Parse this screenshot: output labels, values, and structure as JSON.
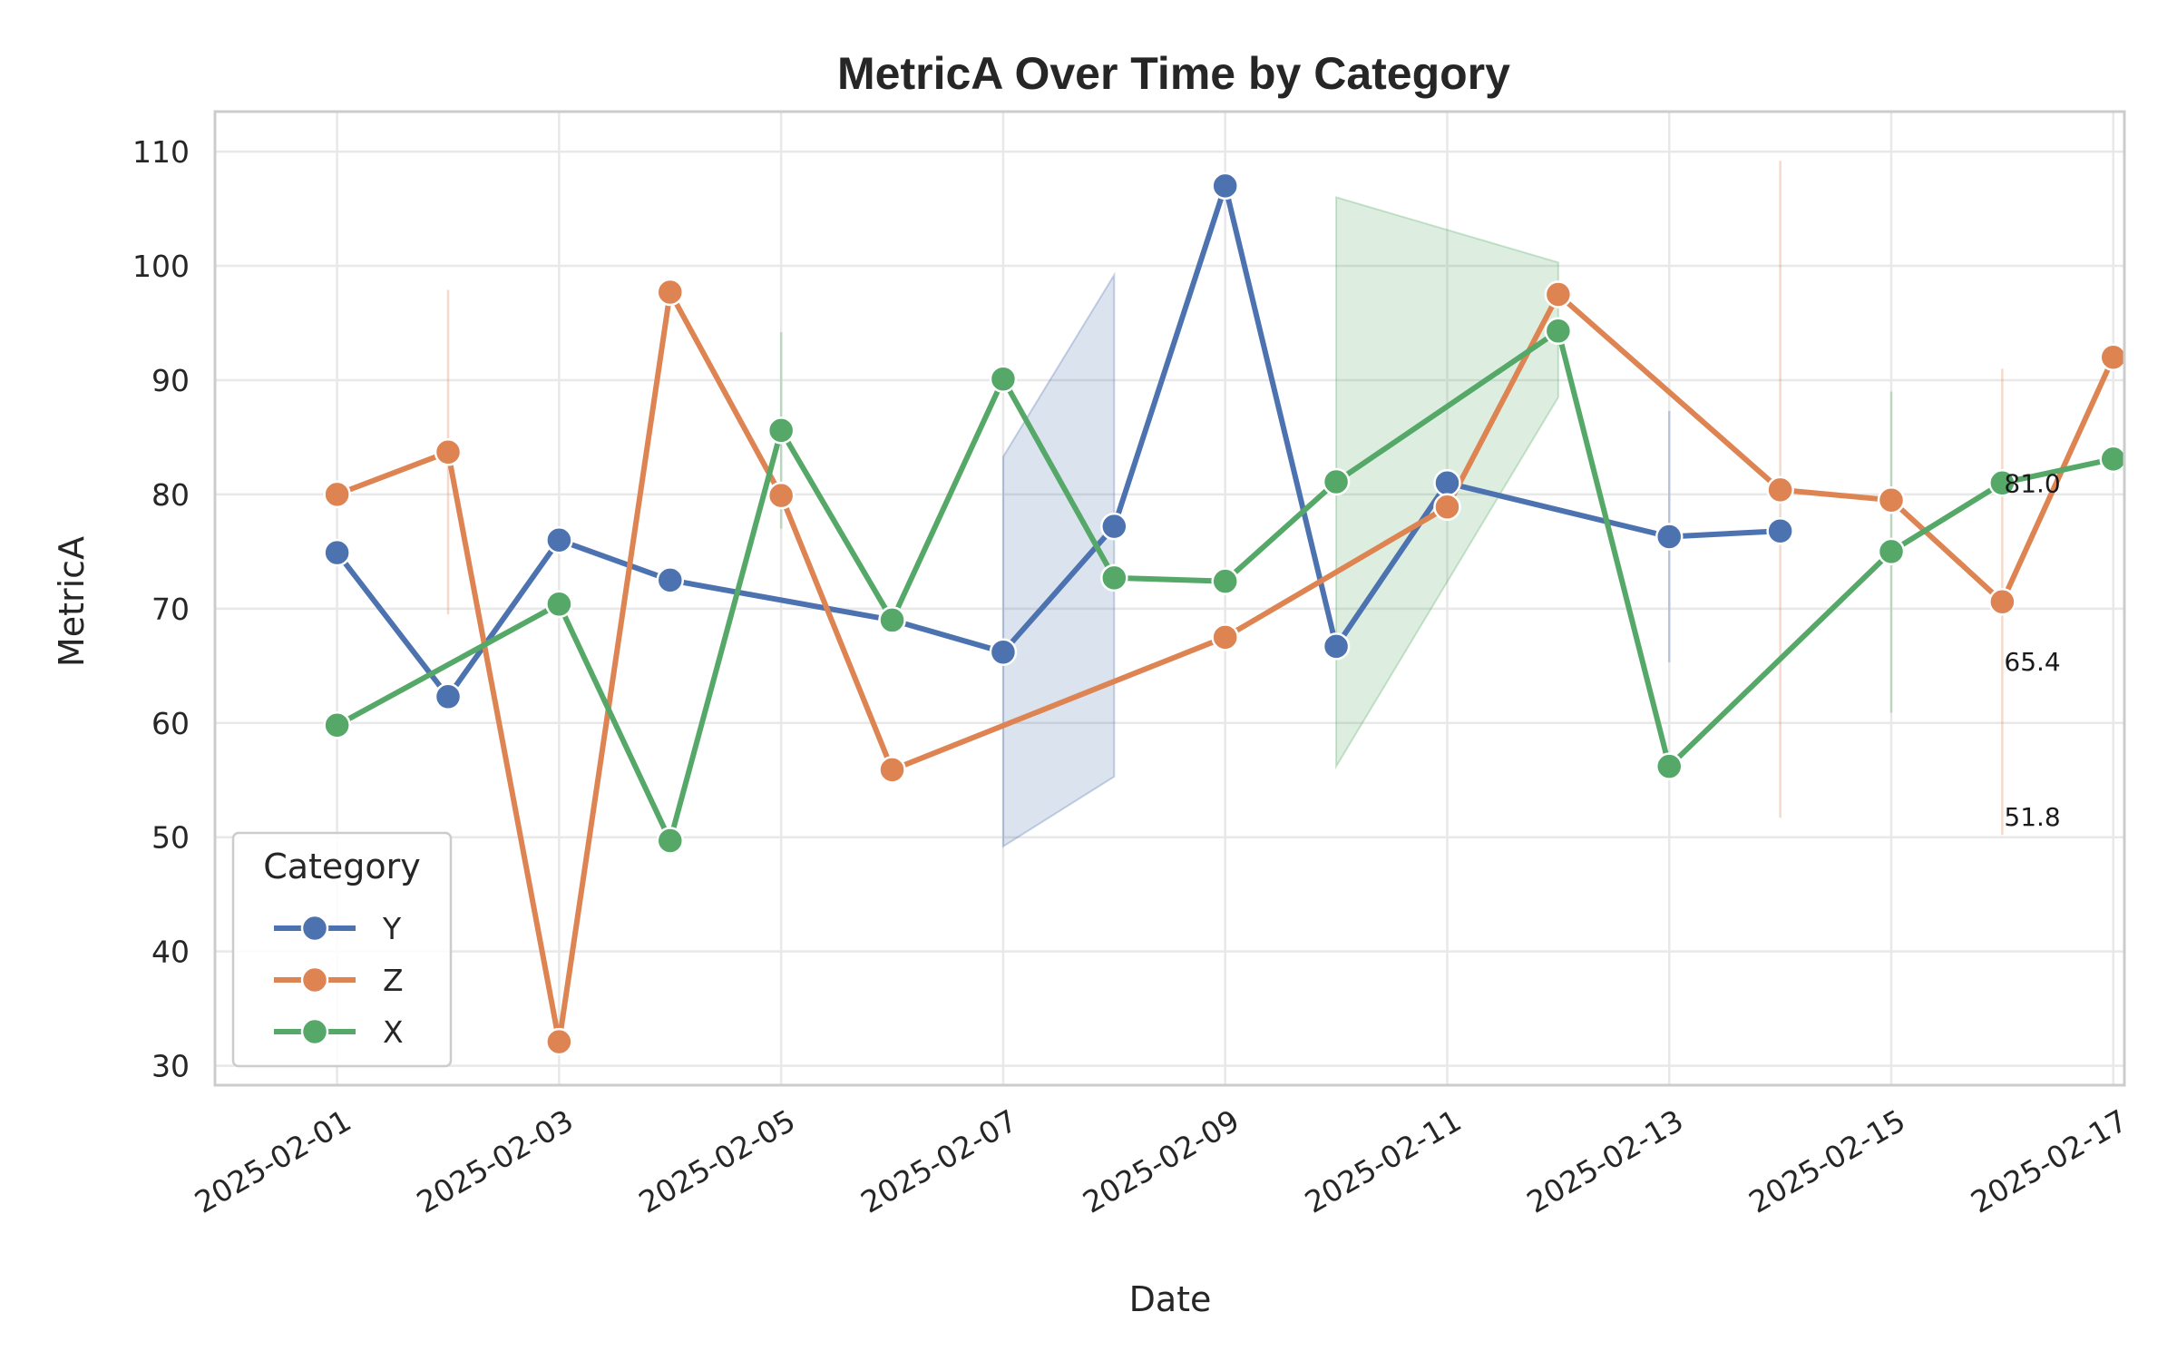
{
  "chart_data": {
    "type": "line",
    "title": "MetricA Over Time by Category",
    "xlabel": "Date",
    "ylabel": "MetricA",
    "ylim": [
      28.3,
      113.5
    ],
    "xlim": [
      "2025-01-31",
      "2025-02-17"
    ],
    "y_ticks": [
      30,
      40,
      50,
      60,
      70,
      80,
      90,
      100,
      110
    ],
    "x_ticks": [
      "2025-02-01",
      "2025-02-03",
      "2025-02-05",
      "2025-02-07",
      "2025-02-09",
      "2025-02-11",
      "2025-02-13",
      "2025-02-15",
      "2025-02-17"
    ],
    "grid": true,
    "legend": {
      "title": "Category",
      "placement": "lower-left"
    },
    "series": [
      {
        "name": "Y",
        "color": "#4c72b0",
        "points": [
          [
            "2025-02-01",
            74.9
          ],
          [
            "2025-02-02",
            62.3
          ],
          [
            "2025-02-03",
            76.0
          ],
          [
            "2025-02-04",
            72.5
          ],
          [
            "2025-02-06",
            69.0
          ],
          [
            "2025-02-07",
            66.2
          ],
          [
            "2025-02-08",
            77.2
          ],
          [
            "2025-02-09",
            107.0
          ],
          [
            "2025-02-10",
            66.7
          ],
          [
            "2025-02-11",
            81.0
          ],
          [
            "2025-02-13",
            76.3
          ],
          [
            "2025-02-14",
            76.8
          ]
        ],
        "bands": [
          {
            "x": [
              "2025-02-07",
              "2025-02-08"
            ],
            "lower": [
              49.2,
              55.3
            ],
            "upper": [
              83.3,
              99.2
            ]
          }
        ],
        "error_bars": [
          {
            "x": "2025-02-13",
            "lower": 65.3,
            "upper": 87.3
          }
        ]
      },
      {
        "name": "Z",
        "color": "#dd8452",
        "points": [
          [
            "2025-02-01",
            80.0
          ],
          [
            "2025-02-02",
            83.7
          ],
          [
            "2025-02-03",
            32.1
          ],
          [
            "2025-02-04",
            97.7
          ],
          [
            "2025-02-05",
            79.9
          ],
          [
            "2025-02-06",
            55.9
          ],
          [
            "2025-02-09",
            67.5
          ],
          [
            "2025-02-11",
            78.9
          ],
          [
            "2025-02-12",
            97.5
          ],
          [
            "2025-02-14",
            80.4
          ],
          [
            "2025-02-15",
            79.5
          ],
          [
            "2025-02-16",
            70.6
          ],
          [
            "2025-02-17",
            92.0
          ]
        ],
        "bands": [],
        "error_bars": [
          {
            "x": "2025-02-02",
            "lower": 69.5,
            "upper": 97.9
          },
          {
            "x": "2025-02-14",
            "lower": 51.7,
            "upper": 109.2
          },
          {
            "x": "2025-02-16",
            "lower": 50.2,
            "upper": 91.0
          }
        ]
      },
      {
        "name": "X",
        "color": "#55a868",
        "points": [
          [
            "2025-02-01",
            59.8
          ],
          [
            "2025-02-03",
            70.4
          ],
          [
            "2025-02-04",
            49.7
          ],
          [
            "2025-02-05",
            85.6
          ],
          [
            "2025-02-06",
            69.0
          ],
          [
            "2025-02-07",
            90.1
          ],
          [
            "2025-02-08",
            72.7
          ],
          [
            "2025-02-09",
            72.4
          ],
          [
            "2025-02-10",
            81.1
          ],
          [
            "2025-02-12",
            94.3
          ],
          [
            "2025-02-13",
            56.2
          ],
          [
            "2025-02-15",
            75.0
          ],
          [
            "2025-02-16",
            81.0
          ],
          [
            "2025-02-17",
            83.1
          ]
        ],
        "bands": [
          {
            "x": [
              "2025-02-10",
              "2025-02-12"
            ],
            "lower": [
              56.2,
              88.5
            ],
            "upper": [
              106.0,
              100.3
            ]
          }
        ],
        "error_bars": [
          {
            "x": "2025-02-05",
            "lower": 77.0,
            "upper": 94.2
          },
          {
            "x": "2025-02-15",
            "lower": 60.9,
            "upper": 89.0
          }
        ]
      }
    ],
    "annotations": [
      {
        "x": "2025-02-16",
        "y": 81.0,
        "text": "81.0"
      },
      {
        "x": "2025-02-16",
        "y": 65.4,
        "text": "65.4"
      },
      {
        "x": "2025-02-16",
        "y": 51.8,
        "text": "51.8"
      }
    ]
  }
}
